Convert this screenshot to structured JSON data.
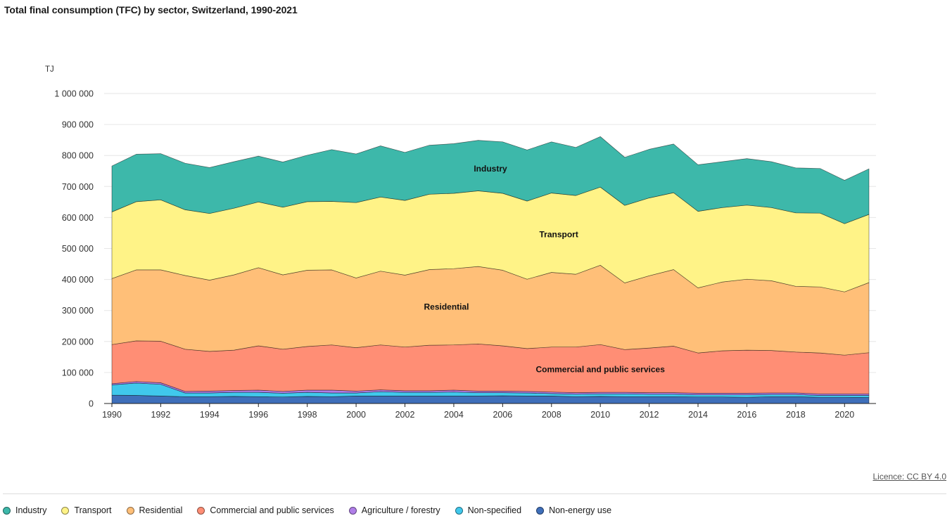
{
  "title": "Total final consumption (TFC) by sector, Switzerland, 1990-2021",
  "licence_label": "Licence: CC BY 4.0",
  "chart_data": {
    "type": "area",
    "stacked": true,
    "title": "Total final consumption (TFC) by sector, Switzerland, 1990-2021",
    "ylabel": "TJ",
    "xlabel": "",
    "ylim": [
      0,
      1000000
    ],
    "xlim": [
      1990,
      2021
    ],
    "grid": true,
    "legend_position": "bottom",
    "x": [
      1990,
      1991,
      1992,
      1993,
      1994,
      1995,
      1996,
      1997,
      1998,
      1999,
      2000,
      2001,
      2002,
      2003,
      2004,
      2005,
      2006,
      2007,
      2008,
      2009,
      2010,
      2011,
      2012,
      2013,
      2014,
      2015,
      2016,
      2017,
      2018,
      2019,
      2020,
      2021
    ],
    "x_ticks": [
      1990,
      1992,
      1994,
      1996,
      1998,
      2000,
      2002,
      2004,
      2006,
      2008,
      2010,
      2012,
      2014,
      2016,
      2018,
      2020
    ],
    "y_ticks": [
      0,
      100000,
      200000,
      300000,
      400000,
      500000,
      600000,
      700000,
      800000,
      900000,
      1000000
    ],
    "y_tick_labels": [
      "0",
      "100 000",
      "200 000",
      "300 000",
      "400 000",
      "500 000",
      "600 000",
      "700 000",
      "800 000",
      "900 000",
      "1 000 000"
    ],
    "series": [
      {
        "name": "Non-energy use",
        "color": "#3f6fba",
        "values": [
          27000,
          26000,
          24000,
          22000,
          22000,
          23000,
          22000,
          21000,
          23000,
          22000,
          24000,
          24000,
          24000,
          24000,
          24000,
          24000,
          25000,
          24000,
          24000,
          22000,
          23000,
          22000,
          22000,
          22000,
          21000,
          21000,
          20000,
          22000,
          22000,
          20000,
          20000,
          19000
        ]
      },
      {
        "name": "Non-specified",
        "color": "#40c8ec",
        "values": [
          33000,
          40000,
          38000,
          12000,
          12000,
          13000,
          14000,
          12000,
          13000,
          12000,
          10000,
          14000,
          12000,
          12000,
          13000,
          11000,
          10000,
          10000,
          8000,
          8000,
          8000,
          9000,
          8000,
          8000,
          7000,
          7000,
          8000,
          7000,
          7000,
          6000,
          6000,
          7000
        ]
      },
      {
        "name": "Agriculture / forestry",
        "color": "#b07ee8",
        "values": [
          4000,
          5000,
          5000,
          5000,
          6000,
          6000,
          7000,
          6000,
          7000,
          9000,
          6000,
          6000,
          5000,
          5000,
          6000,
          5000,
          5000,
          5000,
          5000,
          5000,
          5000,
          5000,
          5000,
          5000,
          5000,
          5000,
          5000,
          5000,
          5000,
          5000,
          5000,
          5000
        ]
      },
      {
        "name": "Commercial and public services",
        "color": "#ff8e75",
        "values": [
          126000,
          131000,
          134000,
          136000,
          128000,
          130000,
          143000,
          136000,
          141000,
          146000,
          140000,
          145000,
          141000,
          147000,
          146000,
          152000,
          146000,
          138000,
          145000,
          147000,
          154000,
          138000,
          144000,
          150000,
          130000,
          137000,
          139000,
          137000,
          132000,
          132000,
          125000,
          133000
        ]
      },
      {
        "name": "Residential",
        "color": "#ffbf78",
        "values": [
          213000,
          229000,
          230000,
          238000,
          230000,
          243000,
          252000,
          240000,
          246000,
          242000,
          225000,
          238000,
          232000,
          244000,
          246000,
          250000,
          244000,
          224000,
          241000,
          235000,
          256000,
          215000,
          233000,
          247000,
          210000,
          222000,
          229000,
          225000,
          212000,
          213000,
          204000,
          226000
        ]
      },
      {
        "name": "Transport",
        "color": "#fff387",
        "values": [
          215000,
          220000,
          226000,
          212000,
          215000,
          215000,
          212000,
          218000,
          221000,
          221000,
          243000,
          239000,
          241000,
          243000,
          243000,
          244000,
          248000,
          252000,
          256000,
          254000,
          252000,
          250000,
          251000,
          248000,
          247000,
          240000,
          239000,
          236000,
          237000,
          238000,
          220000,
          220000
        ]
      },
      {
        "name": "Industry",
        "color": "#3db8aa",
        "values": [
          148000,
          153000,
          149000,
          150000,
          148000,
          150000,
          148000,
          146000,
          150000,
          167000,
          157000,
          165000,
          155000,
          158000,
          160000,
          163000,
          166000,
          165000,
          165000,
          155000,
          163000,
          155000,
          157000,
          157000,
          150000,
          148000,
          150000,
          148000,
          145000,
          144000,
          140000,
          147000
        ]
      }
    ],
    "annotations": [
      {
        "text": "Industry",
        "x": 2005.5,
        "y": 757000
      },
      {
        "text": "Transport",
        "x": 2008.3,
        "y": 545000
      },
      {
        "text": "Residential",
        "x": 2003.7,
        "y": 312000
      },
      {
        "text": "Commercial and public services",
        "x": 2010,
        "y": 110000
      }
    ]
  }
}
